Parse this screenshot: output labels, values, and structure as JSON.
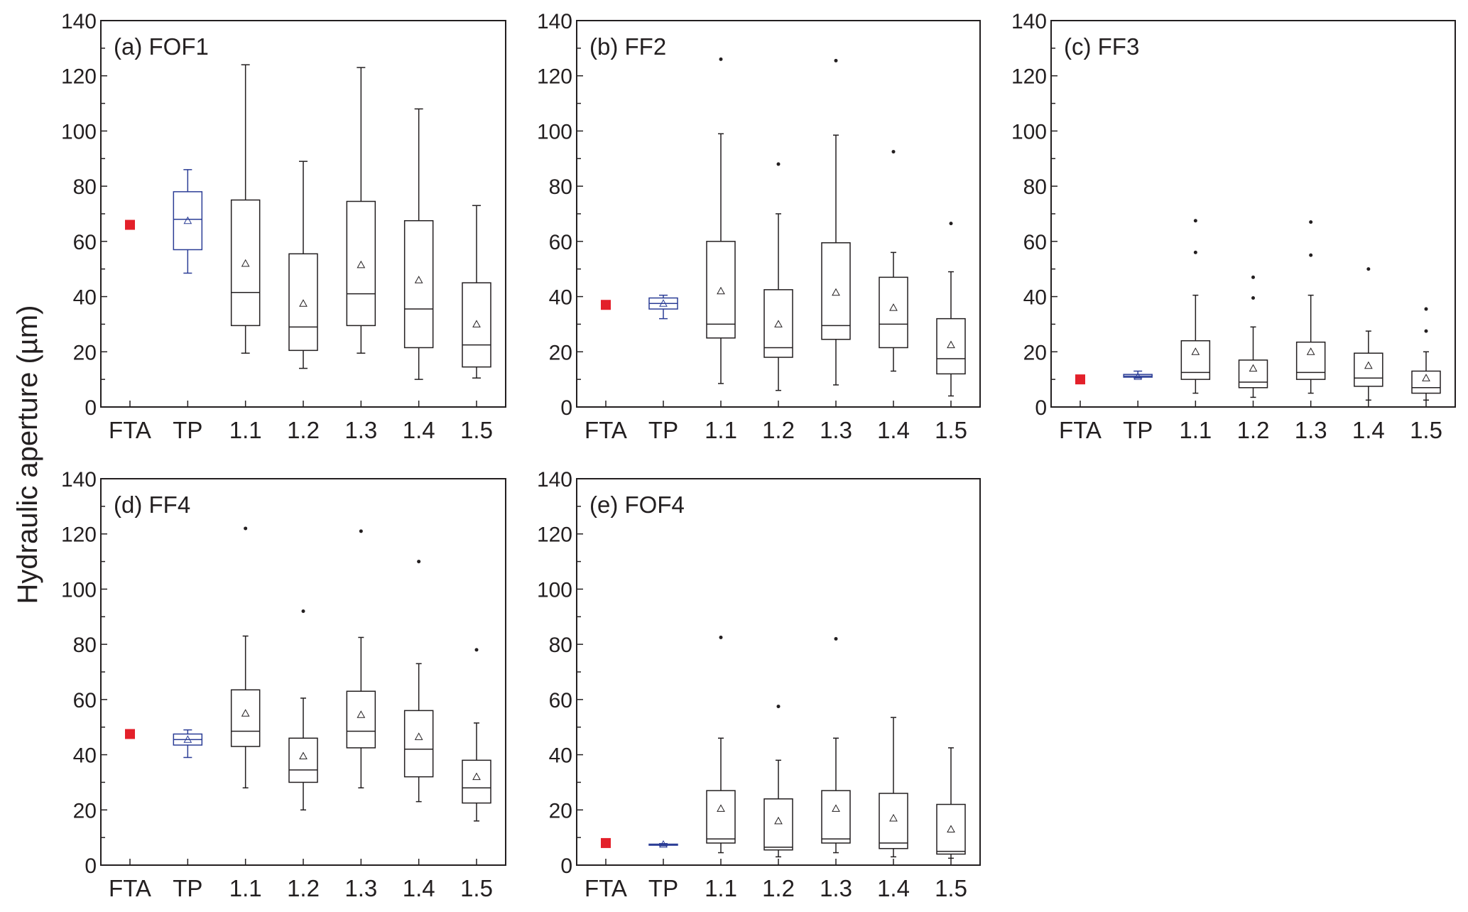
{
  "chart_data": {
    "type": "box",
    "ylabel": "Hydraulic aperture (µm)",
    "ylim": [
      0,
      140
    ],
    "yticks": [
      0,
      20,
      40,
      60,
      80,
      100,
      120,
      140
    ],
    "categories": [
      "FTA",
      "TP",
      "1.1",
      "1.2",
      "1.3",
      "1.4",
      "1.5"
    ],
    "colors": {
      "fta": "#e3202a",
      "tp": "#2b3d96",
      "box": "#231f20"
    },
    "panels": [
      {
        "title": "(a) FOF1",
        "fta": 66,
        "boxes": [
          {
            "category": "TP",
            "low": 48.5,
            "q1": 57,
            "median": 68,
            "q3": 78,
            "high": 86,
            "mean": 67.5,
            "outliers": []
          },
          {
            "category": "1.1",
            "low": 19.5,
            "q1": 29.5,
            "median": 41.5,
            "q3": 75,
            "high": 124,
            "mean": 52,
            "outliers": []
          },
          {
            "category": "1.2",
            "low": 14,
            "q1": 20.5,
            "median": 29,
            "q3": 55.5,
            "high": 89,
            "mean": 37.5,
            "outliers": []
          },
          {
            "category": "1.3",
            "low": 19.5,
            "q1": 29.5,
            "median": 41,
            "q3": 74.5,
            "high": 123,
            "mean": 51.5,
            "outliers": []
          },
          {
            "category": "1.4",
            "low": 10,
            "q1": 21.5,
            "median": 35.5,
            "q3": 67.5,
            "high": 108,
            "mean": 46,
            "outliers": []
          },
          {
            "category": "1.5",
            "low": 10.5,
            "q1": 14.5,
            "median": 22.5,
            "q3": 45,
            "high": 73,
            "mean": 30,
            "outliers": []
          }
        ]
      },
      {
        "title": "(b) FF2",
        "fta": 37,
        "boxes": [
          {
            "category": "TP",
            "low": 32,
            "q1": 35.5,
            "median": 37.5,
            "q3": 39.5,
            "high": 40.5,
            "mean": 37.5,
            "outliers": []
          },
          {
            "category": "1.1",
            "low": 8.5,
            "q1": 25,
            "median": 30,
            "q3": 60,
            "high": 99,
            "mean": 42,
            "outliers": [
              126
            ]
          },
          {
            "category": "1.2",
            "low": 6,
            "q1": 18,
            "median": 21.5,
            "q3": 42.5,
            "high": 70,
            "mean": 30,
            "outliers": [
              88
            ]
          },
          {
            "category": "1.3",
            "low": 8,
            "q1": 24.5,
            "median": 29.5,
            "q3": 59.5,
            "high": 98.5,
            "mean": 41.5,
            "outliers": [
              125.5
            ]
          },
          {
            "category": "1.4",
            "low": 13,
            "q1": 21.5,
            "median": 30,
            "q3": 47,
            "high": 56,
            "mean": 36,
            "outliers": [
              92.5
            ]
          },
          {
            "category": "1.5",
            "low": 4,
            "q1": 12,
            "median": 17.5,
            "q3": 32,
            "high": 49,
            "mean": 22.5,
            "outliers": [
              66.5
            ]
          }
        ]
      },
      {
        "title": "(c) FF3",
        "fta": 10,
        "boxes": [
          {
            "category": "TP",
            "low": 10.5,
            "q1": 10.8,
            "median": 11.2,
            "q3": 11.8,
            "high": 13,
            "mean": 11,
            "outliers": []
          },
          {
            "category": "1.1",
            "low": 5,
            "q1": 10,
            "median": 12.5,
            "q3": 24,
            "high": 40.5,
            "mean": 20,
            "outliers": [
              56,
              67.5
            ]
          },
          {
            "category": "1.2",
            "low": 3.5,
            "q1": 7,
            "median": 9,
            "q3": 17,
            "high": 29,
            "mean": 14,
            "outliers": [
              39.5,
              47
            ]
          },
          {
            "category": "1.3",
            "low": 5,
            "q1": 10,
            "median": 12.5,
            "q3": 23.5,
            "high": 40.5,
            "mean": 20,
            "outliers": [
              55,
              67
            ]
          },
          {
            "category": "1.4",
            "low": 2.5,
            "q1": 7.5,
            "median": 10.5,
            "q3": 19.5,
            "high": 27.5,
            "mean": 15,
            "outliers": [
              50
            ]
          },
          {
            "category": "1.5",
            "low": 2.5,
            "q1": 5,
            "median": 7,
            "q3": 13,
            "high": 20,
            "mean": 10.5,
            "outliers": [
              27.5,
              35.5
            ]
          }
        ]
      },
      {
        "title": "(d) FF4",
        "fta": 47.5,
        "boxes": [
          {
            "category": "TP",
            "low": 39,
            "q1": 43.5,
            "median": 45.5,
            "q3": 47.5,
            "high": 49,
            "mean": 45.5,
            "outliers": []
          },
          {
            "category": "1.1",
            "low": 28,
            "q1": 43,
            "median": 48.5,
            "q3": 63.5,
            "high": 83,
            "mean": 55,
            "outliers": [
              122
            ]
          },
          {
            "category": "1.2",
            "low": 20,
            "q1": 30,
            "median": 34.5,
            "q3": 46,
            "high": 60.5,
            "mean": 39.5,
            "outliers": [
              92
            ]
          },
          {
            "category": "1.3",
            "low": 28,
            "q1": 42.5,
            "median": 48.5,
            "q3": 63,
            "high": 82.5,
            "mean": 54.5,
            "outliers": [
              121
            ]
          },
          {
            "category": "1.4",
            "low": 23,
            "q1": 32,
            "median": 42,
            "q3": 56,
            "high": 73,
            "mean": 46.5,
            "outliers": [
              110
            ]
          },
          {
            "category": "1.5",
            "low": 16,
            "q1": 22.5,
            "median": 28,
            "q3": 38,
            "high": 51.5,
            "mean": 32,
            "outliers": [
              78
            ]
          }
        ]
      },
      {
        "title": "(e) FOF4",
        "fta": 8,
        "boxes": [
          {
            "category": "TP",
            "low": 7,
            "q1": 7.2,
            "median": 7.4,
            "q3": 7.6,
            "high": 7.8,
            "mean": 7.5,
            "outliers": []
          },
          {
            "category": "1.1",
            "low": 4.5,
            "q1": 8,
            "median": 9.5,
            "q3": 27,
            "high": 46,
            "mean": 20.5,
            "outliers": [
              82.5
            ]
          },
          {
            "category": "1.2",
            "low": 3,
            "q1": 5.5,
            "median": 6.5,
            "q3": 24,
            "high": 38,
            "mean": 16,
            "outliers": [
              57.5
            ]
          },
          {
            "category": "1.3",
            "low": 4.5,
            "q1": 8,
            "median": 9.5,
            "q3": 27,
            "high": 46,
            "mean": 20.5,
            "outliers": [
              82
            ]
          },
          {
            "category": "1.4",
            "low": 3,
            "q1": 6,
            "median": 8,
            "q3": 26,
            "high": 53.5,
            "mean": 17,
            "outliers": []
          },
          {
            "category": "1.5",
            "low": 2.5,
            "q1": 4,
            "median": 5,
            "q3": 22,
            "high": 42.5,
            "mean": 13,
            "outliers": []
          }
        ]
      }
    ]
  }
}
